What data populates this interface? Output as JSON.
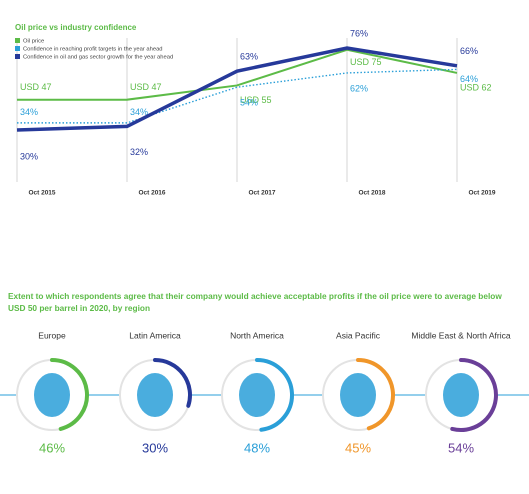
{
  "chart_data": [
    {
      "type": "line",
      "title": "Oil price vs industry confidence",
      "categories": [
        "Oct 2015",
        "Oct 2016",
        "Oct 2017",
        "Oct 2018",
        "Oct 2019"
      ],
      "series": [
        {
          "name": "Oil price",
          "color": "#5cbb47",
          "style": "solid",
          "values": [
            47,
            47,
            55,
            75,
            62
          ],
          "value_labels": [
            "USD 47",
            "USD 47",
            "USD 55",
            "USD 75",
            "USD 62"
          ]
        },
        {
          "name": "Confidence in reaching profit targets in the year ahead",
          "color": "#2a9fd8",
          "style": "dotted",
          "values": [
            34,
            34,
            54,
            62,
            64
          ],
          "value_labels": [
            "34%",
            "34%",
            "54%",
            "62%",
            "64%"
          ]
        },
        {
          "name": "Confidence in oil and gas sector growth for the year ahead",
          "color": "#26399a",
          "style": "solid",
          "values": [
            30,
            32,
            63,
            76,
            66
          ],
          "value_labels": [
            "30%",
            "32%",
            "63%",
            "76%",
            "66%"
          ]
        }
      ]
    },
    {
      "type": "gauge",
      "title": "Extent to which respondents agree that their company would achieve acceptable profits if the oil price were to average below USD 50 per barrel in 2020, by region",
      "categories": [
        "Europe",
        "Latin America",
        "North America",
        "Asia Pacific",
        "Middle East & North Africa"
      ],
      "values": [
        46,
        30,
        48,
        45,
        54
      ],
      "value_labels": [
        "46%",
        "30%",
        "48%",
        "45%",
        "54%"
      ],
      "colors": [
        "#5cbb47",
        "#26399a",
        "#2a9fd8",
        "#f0962a",
        "#6a3f98"
      ]
    }
  ]
}
